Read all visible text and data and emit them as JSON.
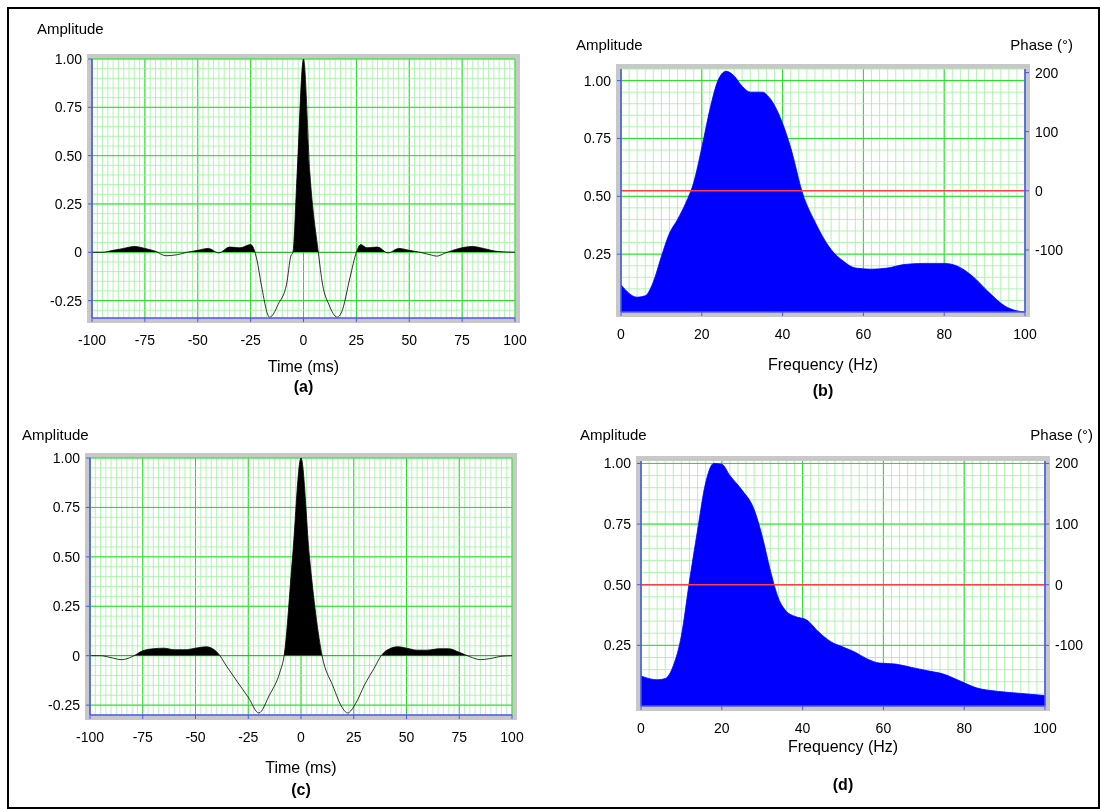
{
  "chart_data": [
    {
      "type": "area",
      "title": "(a)",
      "xlabel": "Time (ms)",
      "ylabel": "Amplitude",
      "xlim": [
        -100,
        100
      ],
      "ylim": [
        -0.34,
        1.0
      ],
      "xticks": [
        -100,
        -75,
        -50,
        -25,
        0,
        25,
        50,
        75,
        100
      ],
      "yticks": [
        {
          "value": -0.25,
          "label": "-0.25"
        },
        0,
        {
          "value": 0.25,
          "label": "0.25"
        },
        {
          "value": 0.5,
          "label": "0.50"
        },
        {
          "value": 0.75,
          "label": "0.75"
        },
        {
          "value": 1,
          "label": "1.00"
        }
      ],
      "grid": true,
      "series": [
        {
          "color": "#000000",
          "x": [
            -100,
            -95,
            -90,
            -85,
            -80,
            -75,
            -70,
            -65,
            -60,
            -55,
            -50,
            -45,
            -40,
            -35,
            -30,
            -25,
            -22,
            -20,
            -16,
            -15,
            -12,
            -8,
            -6,
            -5,
            -3,
            0,
            3,
            7,
            9,
            12,
            16,
            18,
            22,
            25,
            27,
            30,
            35,
            40,
            45,
            50,
            55,
            60,
            63,
            67,
            72,
            80,
            85,
            92,
            100
          ],
          "values": [
            0,
            0,
            0.01,
            0.02,
            0.03,
            0.02,
            0.005,
            -0.018,
            -0.013,
            0,
            0.01,
            0.02,
            -0.004,
            0.027,
            0.023,
            0.04,
            -0.04,
            -0.165,
            -0.336,
            -0.33,
            -0.27,
            -0.165,
            -0.02,
            0,
            0.41,
            1.0,
            0.41,
            0,
            -0.165,
            -0.27,
            -0.336,
            -0.31,
            -0.13,
            0,
            0.04,
            0.023,
            0.027,
            -0.004,
            0.02,
            0.01,
            0,
            -0.013,
            -0.02,
            -0.004,
            0.015,
            0.03,
            0.02,
            0.004,
            0
          ]
        }
      ]
    },
    {
      "type": "area",
      "title": "(b)",
      "xlabel": "Frequency (Hz)",
      "ylabel": "Amplitude",
      "y2label": "Phase (°)",
      "xlim": [
        0,
        100
      ],
      "ylim": [
        0,
        1.05
      ],
      "y2lim": [
        -205,
        206
      ],
      "xticks": [
        0,
        20,
        40,
        60,
        80,
        100
      ],
      "yticks": [
        {
          "value": 0.25,
          "label": "0.25"
        },
        {
          "value": 0.5,
          "label": "0.50"
        },
        {
          "value": 0.75,
          "label": "0.75"
        },
        {
          "value": 1,
          "label": "1.00"
        }
      ],
      "y2ticks": [
        -100,
        0,
        100,
        200
      ],
      "grid": true,
      "series": [
        {
          "color": "#0000ff",
          "x": [
            0,
            4,
            6,
            8,
            10,
            12,
            14,
            16,
            18,
            20,
            22,
            24,
            26,
            28,
            30,
            32,
            35,
            37,
            40,
            42,
            45,
            48,
            52,
            55,
            58,
            62,
            66,
            70,
            75,
            80,
            83,
            87,
            91,
            95,
            98,
            100
          ],
          "values": [
            0.117,
            0.064,
            0.07,
            0.13,
            0.24,
            0.34,
            0.4,
            0.47,
            0.56,
            0.71,
            0.875,
            1.0,
            1.04,
            1.02,
            0.975,
            0.95,
            0.95,
            0.92,
            0.815,
            0.71,
            0.51,
            0.39,
            0.27,
            0.22,
            0.19,
            0.185,
            0.19,
            0.205,
            0.21,
            0.21,
            0.2,
            0.155,
            0.086,
            0.026,
            0.005,
            0.0
          ]
        },
        {
          "type": "line",
          "axis": "y2",
          "color": "#ff4040",
          "x": [
            0,
            100
          ],
          "values": [
            0,
            0
          ]
        }
      ]
    },
    {
      "type": "area",
      "title": "(c)",
      "xlabel": "Time (ms)",
      "ylabel": "Amplitude",
      "xlim": [
        -100,
        100
      ],
      "ylim": [
        -0.3,
        1.0
      ],
      "xticks": [
        -100,
        -75,
        -50,
        -25,
        0,
        25,
        50,
        75,
        100
      ],
      "yticks": [
        {
          "value": -0.25,
          "label": "-0.25"
        },
        0,
        {
          "value": 0.25,
          "label": "0.25"
        },
        {
          "value": 0.5,
          "label": "0.50"
        },
        {
          "value": 0.75,
          "label": "0.75"
        },
        {
          "value": 1,
          "label": "1.00"
        }
      ],
      "grid": true,
      "series": [
        {
          "color": "#000000",
          "x": [
            -100,
            -95,
            -90,
            -85,
            -80,
            -75,
            -70,
            -65,
            -60,
            -55,
            -50,
            -45,
            -40,
            -35,
            -30,
            -25,
            -20,
            -15,
            -10,
            -8,
            -4,
            0,
            4,
            10,
            15,
            20,
            22,
            26,
            30,
            35,
            38,
            42,
            46,
            50,
            55,
            60,
            65,
            70,
            75,
            80,
            85,
            90,
            95,
            100
          ],
          "values": [
            0,
            0,
            -0.01,
            -0.02,
            -0.005,
            0.025,
            0.035,
            0.038,
            0.03,
            0.03,
            0.038,
            0.045,
            0.02,
            -0.057,
            -0.135,
            -0.21,
            -0.29,
            -0.2,
            -0.083,
            0,
            0.5,
            1.0,
            0.5,
            0,
            -0.15,
            -0.27,
            -0.29,
            -0.24,
            -0.15,
            -0.057,
            0,
            0.035,
            0.045,
            0.038,
            0.028,
            0.028,
            0.035,
            0.035,
            0.017,
            -0.005,
            -0.02,
            -0.014,
            -0.003,
            0
          ]
        }
      ]
    },
    {
      "type": "area",
      "title": "(d)",
      "xlabel": "Frequency (Hz)",
      "ylabel": "Amplitude",
      "y2label": "Phase (°)",
      "xlim": [
        0,
        100
      ],
      "ylim": [
        0,
        1.01
      ],
      "y2lim": [
        -200,
        204
      ],
      "xticks": [
        0,
        20,
        40,
        60,
        80,
        100
      ],
      "yticks": [
        {
          "value": 0.25,
          "label": "0.25"
        },
        {
          "value": 0.5,
          "label": "0.50"
        },
        {
          "value": 0.75,
          "label": "0.75"
        },
        {
          "value": 1,
          "label": "1.00"
        }
      ],
      "y2ticks": [
        -100,
        0,
        100,
        200
      ],
      "grid": true,
      "series": [
        {
          "color": "#0000ff",
          "x": [
            0,
            4,
            6,
            8,
            10,
            12,
            14,
            16,
            18,
            20,
            22,
            25,
            28,
            30,
            32,
            34,
            36,
            38,
            41,
            44,
            47,
            50,
            53,
            56,
            59,
            63,
            67,
            71,
            75,
            79,
            83,
            88,
            94,
            100
          ],
          "values": [
            0.124,
            0.108,
            0.113,
            0.166,
            0.29,
            0.515,
            0.725,
            0.92,
            1.0,
            0.997,
            0.95,
            0.89,
            0.81,
            0.7,
            0.56,
            0.445,
            0.39,
            0.37,
            0.355,
            0.305,
            0.265,
            0.243,
            0.222,
            0.194,
            0.177,
            0.173,
            0.159,
            0.145,
            0.131,
            0.103,
            0.075,
            0.061,
            0.052,
            0.043
          ]
        },
        {
          "type": "line",
          "axis": "y2",
          "color": "#ff4040",
          "x": [
            0,
            100
          ],
          "values": [
            0,
            0
          ]
        }
      ]
    }
  ]
}
